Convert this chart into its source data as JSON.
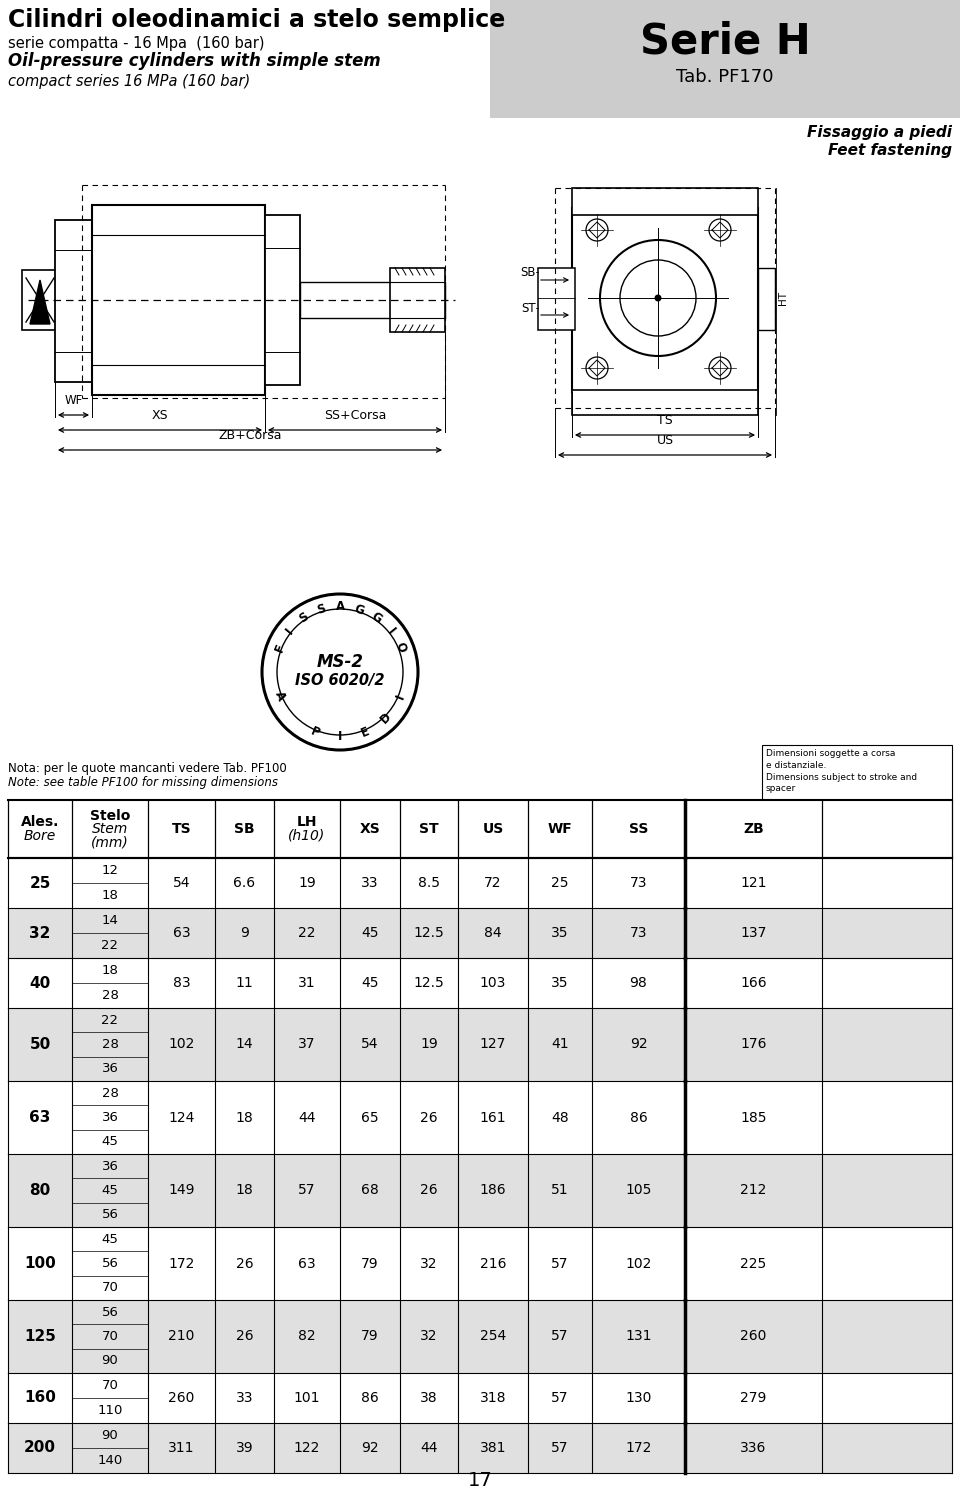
{
  "title_italian": "Cilindri oleodinamici a stelo semplice",
  "subtitle1_italian": "serie compatta - 16 Mpa  (160 bar)",
  "subtitle2_italian": "Oil-pressure cylinders with simple stem",
  "subtitle3_italian": "compact series 16 MPa (160 bar)",
  "series_title": "Serie H",
  "series_tab": "Tab. PF170",
  "fastening_italian": "Fissaggio a piedi",
  "fastening_english": "Feet fastening",
  "nota_italian": "Nota: per le quote mancanti vedere Tab. PF100",
  "nota_english": "Note: see table PF100 for missing dimensions",
  "dim_note": "Dimensioni soggette a corsa\ne distanziale.\nDimensions subject to stroke and\nspacer",
  "stamp_line2": "MS-2",
  "stamp_line3": "ISO 6020/2",
  "page_number": "17",
  "bg_color": "#ffffff",
  "header_bg": "#cccccc",
  "row_alt_color": "#e0e0e0",
  "row_white": "#ffffff",
  "rows": [
    {
      "bore": "25",
      "stems": [
        "12",
        "18"
      ],
      "TS": "54",
      "SB": "6.6",
      "LH": "19",
      "XS": "33",
      "ST": "8.5",
      "US": "72",
      "WF": "25",
      "SS": "73",
      "ZB": "121"
    },
    {
      "bore": "32",
      "stems": [
        "14",
        "22"
      ],
      "TS": "63",
      "SB": "9",
      "LH": "22",
      "XS": "45",
      "ST": "12.5",
      "US": "84",
      "WF": "35",
      "SS": "73",
      "ZB": "137"
    },
    {
      "bore": "40",
      "stems": [
        "18",
        "28"
      ],
      "TS": "83",
      "SB": "11",
      "LH": "31",
      "XS": "45",
      "ST": "12.5",
      "US": "103",
      "WF": "35",
      "SS": "98",
      "ZB": "166"
    },
    {
      "bore": "50",
      "stems": [
        "22",
        "28",
        "36"
      ],
      "TS": "102",
      "SB": "14",
      "LH": "37",
      "XS": "54",
      "ST": "19",
      "US": "127",
      "WF": "41",
      "SS": "92",
      "ZB": "176"
    },
    {
      "bore": "63",
      "stems": [
        "28",
        "36",
        "45"
      ],
      "TS": "124",
      "SB": "18",
      "LH": "44",
      "XS": "65",
      "ST": "26",
      "US": "161",
      "WF": "48",
      "SS": "86",
      "ZB": "185"
    },
    {
      "bore": "80",
      "stems": [
        "36",
        "45",
        "56"
      ],
      "TS": "149",
      "SB": "18",
      "LH": "57",
      "XS": "68",
      "ST": "26",
      "US": "186",
      "WF": "51",
      "SS": "105",
      "ZB": "212"
    },
    {
      "bore": "100",
      "stems": [
        "45",
        "56",
        "70"
      ],
      "TS": "172",
      "SB": "26",
      "LH": "63",
      "XS": "79",
      "ST": "32",
      "US": "216",
      "WF": "57",
      "SS": "102",
      "ZB": "225"
    },
    {
      "bore": "125",
      "stems": [
        "56",
        "70",
        "90"
      ],
      "TS": "210",
      "SB": "26",
      "LH": "82",
      "XS": "79",
      "ST": "32",
      "US": "254",
      "WF": "57",
      "SS": "131",
      "ZB": "260"
    },
    {
      "bore": "160",
      "stems": [
        "70",
        "110"
      ],
      "TS": "260",
      "SB": "33",
      "LH": "101",
      "XS": "86",
      "ST": "38",
      "US": "318",
      "WF": "57",
      "SS": "130",
      "ZB": "279"
    },
    {
      "bore": "200",
      "stems": [
        "90",
        "140"
      ],
      "TS": "311",
      "SB": "39",
      "LH": "122",
      "XS": "92",
      "ST": "44",
      "US": "381",
      "WF": "57",
      "SS": "172",
      "ZB": "336"
    }
  ],
  "col_bounds": [
    8,
    72,
    148,
    215,
    274,
    340,
    400,
    458,
    528,
    592,
    685,
    822,
    952
  ]
}
